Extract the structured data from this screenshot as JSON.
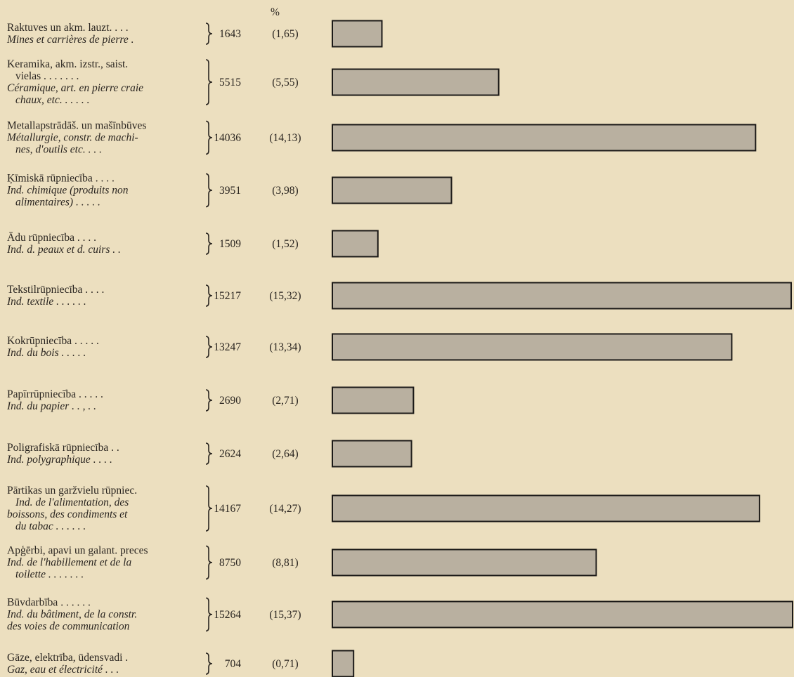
{
  "chart_data": {
    "type": "bar",
    "orientation": "horizontal",
    "percent_header": "%",
    "categories": [
      {
        "lines": [
          {
            "t": "Raktuves un akm. lauzt. . . .",
            "it": false
          },
          {
            "t": "Mines et carrières de pierre .",
            "it": true
          }
        ],
        "value": 1643,
        "pct": "(1,65)"
      },
      {
        "lines": [
          {
            "t": "Keramika, akm. izstr., saist.",
            "it": false
          },
          {
            "t": "vielas . . . . . . .",
            "it": false
          },
          {
            "t": "Céramique, art. en pierre craie",
            "it": true
          },
          {
            "t": "chaux, etc. . . . . .",
            "it": true
          }
        ],
        "value": 5515,
        "pct": "(5,55)"
      },
      {
        "lines": [
          {
            "t": "Metallapstrādāš. un mašīnbūves",
            "it": false
          },
          {
            "t": "Métallurgie, constr. de machi-",
            "it": true
          },
          {
            "t": "nes, d'outils etc. . . .",
            "it": true
          }
        ],
        "value": 14036,
        "pct": "(14,13)"
      },
      {
        "lines": [
          {
            "t": "Ķīmiskā rūpniecība . . . .",
            "it": false
          },
          {
            "t": "Ind. chimique (produits non",
            "it": true
          },
          {
            "t": "alimentaires) . . . . .",
            "it": true
          }
        ],
        "value": 3951,
        "pct": "(3,98)"
      },
      {
        "lines": [
          {
            "t": "Ādu rūpniecība . . . .",
            "it": false
          },
          {
            "t": "Ind. d. peaux et d. cuirs . .",
            "it": true
          }
        ],
        "value": 1509,
        "pct": "(1,52)"
      },
      {
        "lines": [
          {
            "t": "Tekstilrūpniecība . . . .",
            "it": false
          },
          {
            "t": "Ind. textile . . . . . .",
            "it": true
          }
        ],
        "value": 15217,
        "pct": "(15,32)"
      },
      {
        "lines": [
          {
            "t": "Kokrūpniecība . . . . .",
            "it": false
          },
          {
            "t": "Ind. du bois . . . . .",
            "it": true
          }
        ],
        "value": 13247,
        "pct": "(13,34)"
      },
      {
        "lines": [
          {
            "t": "Papīrrūpniecība . . . . .",
            "it": false
          },
          {
            "t": "Ind. du papier . . , . .",
            "it": true
          }
        ],
        "value": 2690,
        "pct": "(2,71)"
      },
      {
        "lines": [
          {
            "t": "Poligrafiskā rūpniecība . .",
            "it": false
          },
          {
            "t": "Ind. polygraphique . . . .",
            "it": true
          }
        ],
        "value": 2624,
        "pct": "(2,64)"
      },
      {
        "lines": [
          {
            "t": "Pārtikas un garžvielu rūpniec.",
            "it": false
          },
          {
            "t": "Ind. de l'alimentation, des",
            "it": true
          },
          {
            "t": "boissons, des condiments et",
            "it": true
          },
          {
            "t": "du tabac . . . . . .",
            "it": true
          }
        ],
        "value": 14167,
        "pct": "(14,27)"
      },
      {
        "lines": [
          {
            "t": "Apģērbi, apavi un galant. preces",
            "it": false
          },
          {
            "t": "Ind. de l'habillement et de la",
            "it": true
          },
          {
            "t": "toilette . . . . . . .",
            "it": true
          }
        ],
        "value": 8750,
        "pct": "(8,81)"
      },
      {
        "lines": [
          {
            "t": "Būvdarbība . . . . . .",
            "it": false
          },
          {
            "t": "Ind. du bâtiment, de la constr.",
            "it": true
          },
          {
            "t": "des voies de communication",
            "it": true
          }
        ],
        "value": 15264,
        "pct": "(15,37)"
      },
      {
        "lines": [
          {
            "t": "Gāze, elektrība, ūdensvadi .",
            "it": false
          },
          {
            "t": "Gaz, eau et électricité . . .",
            "it": true
          }
        ],
        "value": 704,
        "pct": "(0,71)"
      }
    ],
    "xlim": [
      0,
      15264
    ],
    "grid": false,
    "legend": "none",
    "colors": {
      "bar_fill": "#b9b0a0",
      "bar_stroke": "#1c1a18",
      "background": "#ecdfbf"
    }
  }
}
